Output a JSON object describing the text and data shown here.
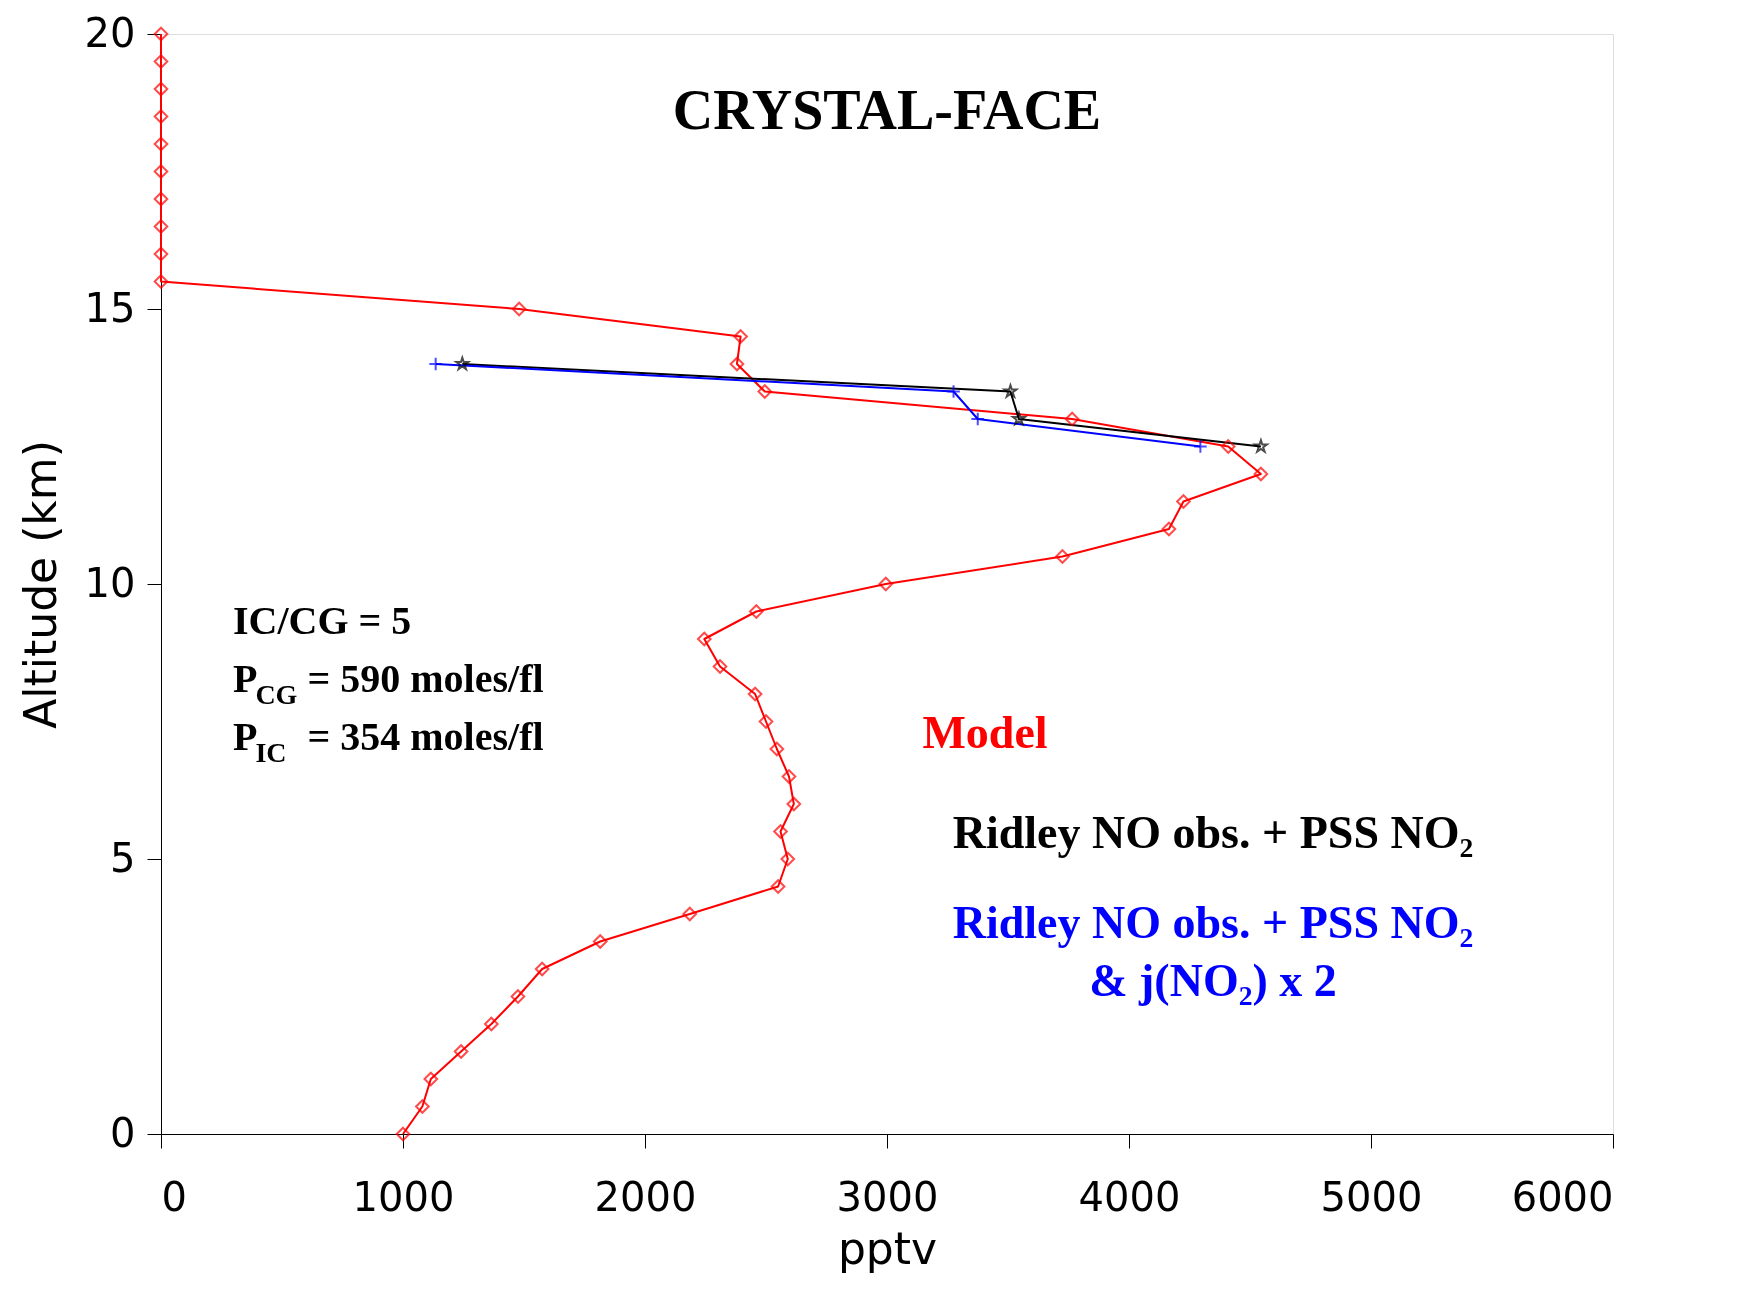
{
  "chart_data": {
    "type": "line",
    "title": "CRYSTAL-FACE",
    "xlabel": "pptv",
    "ylabel": "Altitude (km)",
    "xlim": [
      0,
      6000
    ],
    "xticks": [
      0,
      1000,
      2000,
      3000,
      4000,
      5000,
      6000
    ],
    "ylim": [
      0,
      20
    ],
    "yticks": [
      0,
      5,
      10,
      15,
      20
    ],
    "grid": false,
    "legend": "bottom right",
    "annotations": [
      "IC/CG = 5",
      "P$_{CG}$ = 590 moles/fl",
      "P$_{IC}$ = 354 moles/fl"
    ],
    "series": [
      {
        "name": "Model",
        "color": "#ff0000",
        "marker": "diamond",
        "x": [
          1000,
          1080,
          1115,
          1240,
          1365,
          1475,
          1575,
          1815,
          2185,
          2550,
          2590,
          2560,
          2615,
          2595,
          2545,
          2500,
          2455,
          2310,
          2245,
          2460,
          2995,
          3725,
          4165,
          4225,
          4545,
          4410,
          3765,
          2495,
          2380,
          2395,
          1480,
          0,
          0,
          0,
          0,
          0,
          0,
          0,
          0,
          0,
          0
        ],
        "values": [
          0,
          0.5,
          1,
          1.5,
          2,
          2.5,
          3,
          3.5,
          4,
          4.5,
          5,
          5.5,
          6,
          6.5,
          7,
          7.5,
          8,
          8.5,
          9,
          9.5,
          10,
          10.5,
          11,
          11.5,
          12,
          12.5,
          13,
          13.5,
          14,
          14.5,
          15,
          15.5,
          16,
          16.5,
          17,
          17.5,
          18,
          18.5,
          19,
          19.5,
          20
        ]
      },
      {
        "name": "Ridley NO obs. + PSS NO₂",
        "color": "#000000",
        "marker": "star",
        "x": [
          1245,
          3510,
          3545,
          4545
        ],
        "values": [
          14,
          13.5,
          13,
          12.5
        ]
      },
      {
        "name": "Ridley NO obs. + PSS NO₂\n& j(NO₂) x 2",
        "color": "#0000ff",
        "marker": "cross",
        "x": [
          1135,
          3275,
          3375,
          4295
        ],
        "values": [
          14,
          13.5,
          13,
          12.5
        ]
      }
    ]
  }
}
